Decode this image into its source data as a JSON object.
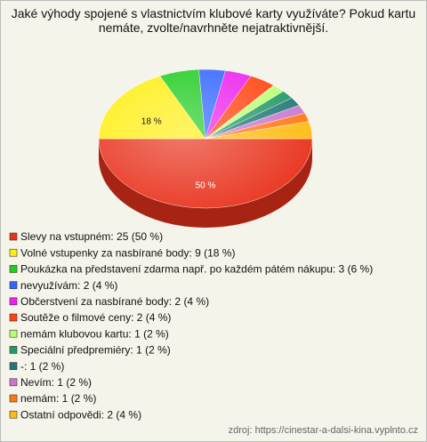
{
  "chart_data": {
    "type": "pie",
    "title": "Jaké výhody spojené s vlastnictvím klubové karty využíváte? Pokud kartu nemáte, zvolte/navrhněte nejatraktivnější.",
    "categories": [
      "Slevy na vstupném: 25 (50 %)",
      "Volné vstupenky za nasbírané body: 9 (18 %)",
      "Poukázka na představení zdarma např. po každém pátém nákupu: 3 (6 %)",
      "nevyužívám: 2 (4 %)",
      "Občerstvení za nasbírané body: 2 (4 %)",
      "Soutěže o filmové ceny: 2 (4 %)",
      "nemám klubovou kartu: 1 (2 %)",
      "Speciální předpremiéry: 1 (2 %)",
      "-: 1 (2 %)",
      "Nevím: 1 (2 %)",
      "nemám: 1 (2 %)",
      "Ostatní odpovědi: 2 (4 %)"
    ],
    "values": [
      50,
      18,
      6,
      4,
      4,
      4,
      2,
      2,
      2,
      2,
      2,
      4
    ],
    "value_labels": [
      "50 %",
      "18 %",
      null,
      null,
      null,
      null,
      null,
      null,
      null,
      null,
      null,
      null
    ],
    "colors": [
      "#e8321c",
      "#ffee11",
      "#22cc22",
      "#3366ff",
      "#ee22ee",
      "#ff4411",
      "#bbff77",
      "#229966",
      "#227777",
      "#cc77cc",
      "#ff7711",
      "#ffbb11"
    ],
    "source": "zdroj: https://cinestar-a-dalsi-kina.vyplnto.cz"
  }
}
